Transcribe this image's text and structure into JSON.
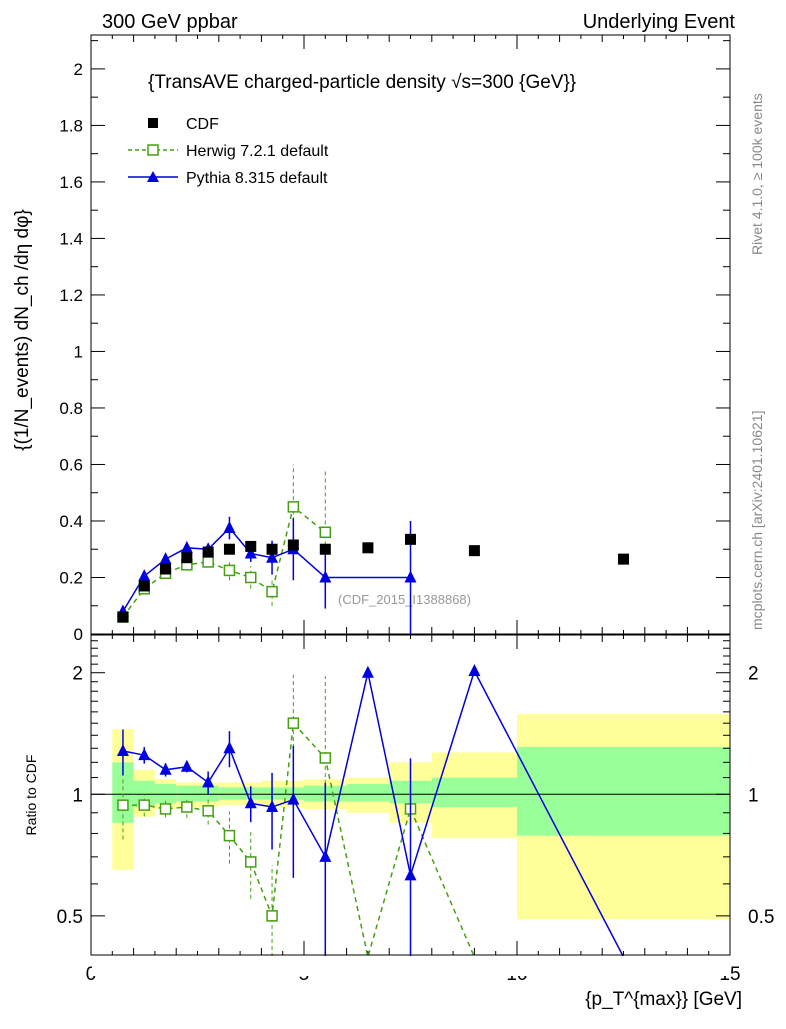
{
  "header": {
    "left": "300 GeV ppbar",
    "right": "Underlying Event"
  },
  "side": {
    "rivet": "Rivet 4.1.0, ≥ 100k events",
    "mcplots": "mcplots.cern.ch [arXiv:2401.10621]"
  },
  "chart_data": [
    {
      "type": "scatter",
      "title": "{TransAVE charged-particle density √s=300 {GeV}}",
      "ylabel": "{(1/N_events) dN_ch /dη dφ}",
      "xlim": [
        0,
        15
      ],
      "ylim": [
        0,
        2.12
      ],
      "yticks": [
        "0",
        "0.2",
        "0.4",
        "0.6",
        "0.8",
        "1",
        "1.2",
        "1.4",
        "1.6",
        "1.8",
        "2"
      ],
      "annotation": "(CDF_2015_I1388868)",
      "legend": [
        "CDF",
        "Herwig 7.2.1 default",
        "Pythia 8.315 default"
      ],
      "x": [
        0.75,
        1.25,
        1.75,
        2.25,
        2.75,
        3.25,
        3.75,
        4.25,
        4.75,
        5.5,
        6.5,
        7.5,
        9,
        12.5
      ],
      "series": [
        {
          "name": "CDF",
          "color": "#000000",
          "values": [
            0.06,
            0.17,
            0.23,
            0.27,
            0.29,
            0.3,
            0.31,
            0.3,
            0.315,
            0.3,
            0.305,
            0.335,
            0.295,
            0.265
          ]
        },
        {
          "name": "Herwig 7.2.1 default",
          "color": "#44a010",
          "values": [
            0.06,
            0.16,
            0.215,
            0.245,
            0.255,
            0.225,
            0.2,
            0.15,
            0.45,
            0.36,
            null,
            null,
            null,
            null
          ],
          "err": [
            0.01,
            0.01,
            0.01,
            0.015,
            0.02,
            0.035,
            0.04,
            0.05,
            0.15,
            0.22,
            null,
            null,
            null,
            null
          ]
        },
        {
          "name": "Pythia 8.315 default",
          "color": "#0000e0",
          "values": [
            0.08,
            0.205,
            0.265,
            0.305,
            0.3,
            0.375,
            0.285,
            0.27,
            0.3,
            0.2,
            null,
            0.2,
            null,
            null
          ],
          "err": [
            0.01,
            0.01,
            0.01,
            0.01,
            0.02,
            0.04,
            0.03,
            0.06,
            0.11,
            0.11,
            null,
            0.2,
            null,
            null
          ]
        }
      ]
    },
    {
      "type": "line",
      "ylabel": "Ratio to CDF",
      "xlabel": "{p_T^{max}} [GeV]",
      "xlim": [
        0,
        15
      ],
      "ylim": [
        0.4,
        2.48
      ],
      "xticks": [
        "0",
        "5",
        "10",
        "15"
      ],
      "yticks": [
        "0.5",
        "1",
        "2"
      ],
      "bands": [
        [
          0.5,
          1,
          0.85,
          1.2,
          0.65,
          1.45
        ],
        [
          1,
          1.5,
          0.93,
          1.08,
          0.88,
          1.15
        ],
        [
          1.5,
          2,
          0.95,
          1.06,
          0.92,
          1.09
        ],
        [
          2,
          3,
          0.96,
          1.05,
          0.93,
          1.07
        ],
        [
          3,
          4,
          0.97,
          1.04,
          0.94,
          1.07
        ],
        [
          4,
          5,
          0.97,
          1.04,
          0.93,
          1.08
        ],
        [
          5,
          6,
          0.96,
          1.05,
          0.92,
          1.09
        ],
        [
          6,
          7,
          0.96,
          1.06,
          0.9,
          1.1
        ],
        [
          7,
          8,
          0.95,
          1.08,
          0.85,
          1.2
        ],
        [
          8,
          10,
          0.93,
          1.1,
          0.78,
          1.27
        ],
        [
          10,
          15,
          0.79,
          1.31,
          0.49,
          1.58
        ]
      ],
      "series": [
        {
          "name": "Herwig 7.2.1 default",
          "values": [
            0.94,
            0.94,
            0.92,
            0.93,
            0.91,
            0.79,
            0.68,
            0.5,
            1.5,
            1.23,
            0.2,
            0.92,
            0.2,
            null
          ]
        },
        {
          "name": "Pythia 8.315 default",
          "values": [
            1.28,
            1.25,
            1.15,
            1.17,
            1.07,
            1.3,
            0.95,
            0.93,
            0.97,
            0.7,
            2.0,
            0.63,
            2.02,
            0.2
          ]
        }
      ]
    }
  ]
}
